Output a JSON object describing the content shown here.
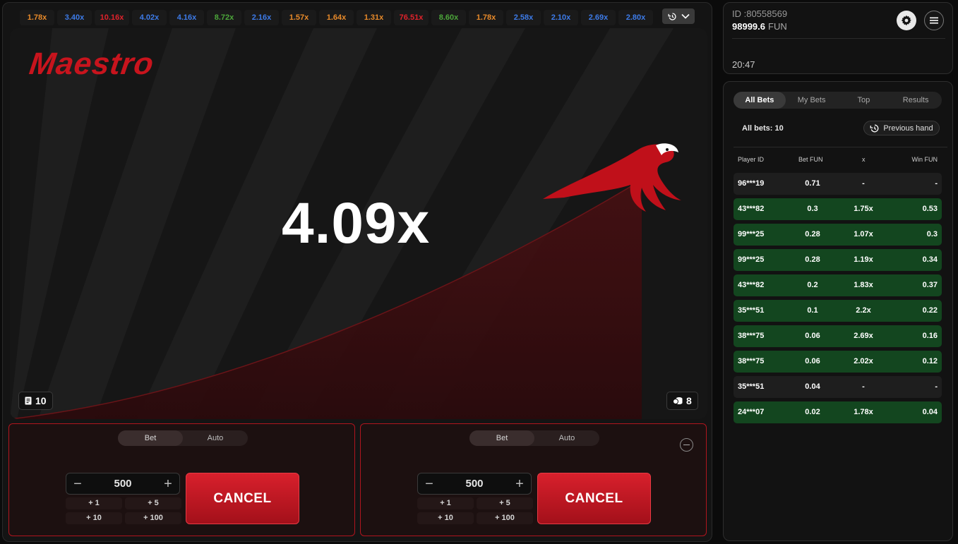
{
  "history": [
    {
      "value": "1.78x",
      "color": "#e88a2a"
    },
    {
      "value": "3.40x",
      "color": "#3d7be8"
    },
    {
      "value": "10.16x",
      "color": "#e0222b"
    },
    {
      "value": "4.02x",
      "color": "#3d7be8"
    },
    {
      "value": "4.16x",
      "color": "#3d7be8"
    },
    {
      "value": "8.72x",
      "color": "#4ca63a"
    },
    {
      "value": "2.16x",
      "color": "#3d7be8"
    },
    {
      "value": "1.57x",
      "color": "#e88a2a"
    },
    {
      "value": "1.64x",
      "color": "#e88a2a"
    },
    {
      "value": "1.31x",
      "color": "#e88a2a"
    },
    {
      "value": "76.51x",
      "color": "#e0222b"
    },
    {
      "value": "8.60x",
      "color": "#4ca63a"
    },
    {
      "value": "1.78x",
      "color": "#e88a2a"
    },
    {
      "value": "2.58x",
      "color": "#3d7be8"
    },
    {
      "value": "2.10x",
      "color": "#3d7be8"
    },
    {
      "value": "2.69x",
      "color": "#3d7be8"
    },
    {
      "value": "2.80x",
      "color": "#3d7be8"
    }
  ],
  "game": {
    "logo": "Maestro",
    "multiplier": "4.09x",
    "bets_count": "10",
    "players_count": "8"
  },
  "panels": [
    {
      "mode_tabs": [
        "Bet",
        "Auto"
      ],
      "active_mode": "Bet",
      "stake": "500",
      "quick": [
        "+ 1",
        "+ 5",
        "+ 10",
        "+ 100"
      ],
      "action_label": "CANCEL"
    },
    {
      "mode_tabs": [
        "Bet",
        "Auto"
      ],
      "active_mode": "Bet",
      "stake": "500",
      "quick": [
        "+ 1",
        "+ 5",
        "+ 10",
        "+ 100"
      ],
      "action_label": "CANCEL"
    }
  ],
  "account": {
    "id": "ID :80558569",
    "balance": "98999.6",
    "currency": "FUN",
    "time": "20:47"
  },
  "bets": {
    "tabs": [
      "All Bets",
      "My Bets",
      "Top",
      "Results"
    ],
    "active_tab": "All Bets",
    "all_bets_label": "All bets: 10",
    "previous_hand_label": "Previous hand",
    "columns": [
      "Player ID",
      "Bet  FUN",
      "x",
      "Win  FUN"
    ],
    "rows": [
      {
        "id": "96***19",
        "bet": "0.71",
        "x": "-",
        "win": "-",
        "won": false
      },
      {
        "id": "43***82",
        "bet": "0.3",
        "x": "1.75x",
        "win": "0.53",
        "won": true
      },
      {
        "id": "99***25",
        "bet": "0.28",
        "x": "1.07x",
        "win": "0.3",
        "won": true
      },
      {
        "id": "99***25",
        "bet": "0.28",
        "x": "1.19x",
        "win": "0.34",
        "won": true
      },
      {
        "id": "43***82",
        "bet": "0.2",
        "x": "1.83x",
        "win": "0.37",
        "won": true
      },
      {
        "id": "35***51",
        "bet": "0.1",
        "x": "2.2x",
        "win": "0.22",
        "won": true
      },
      {
        "id": "38***75",
        "bet": "0.06",
        "x": "2.69x",
        "win": "0.16",
        "won": true
      },
      {
        "id": "38***75",
        "bet": "0.06",
        "x": "2.02x",
        "win": "0.12",
        "won": true
      },
      {
        "id": "35***51",
        "bet": "0.04",
        "x": "-",
        "win": "-",
        "won": false
      },
      {
        "id": "24***07",
        "bet": "0.02",
        "x": "1.78x",
        "win": "0.04",
        "won": true
      }
    ]
  }
}
